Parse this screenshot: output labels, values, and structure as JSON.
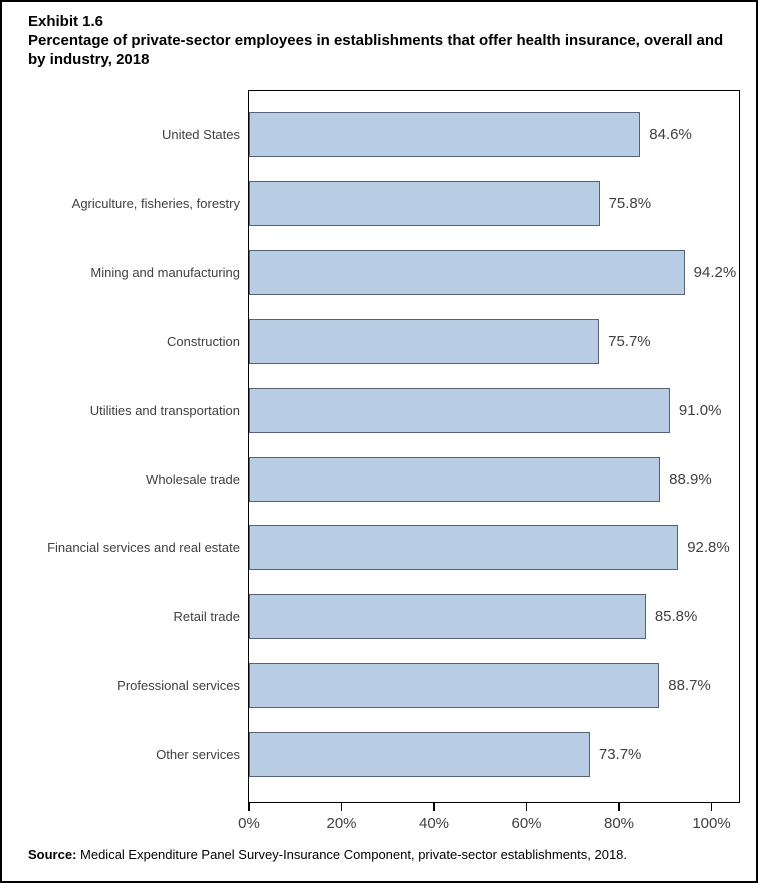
{
  "title": {
    "exhibit": "Exhibit 1.6",
    "text": "Percentage of private-sector employees in establishments that offer health insurance, overall and by industry, 2018"
  },
  "source": {
    "label": "Source:",
    "text": " Medical Expenditure Panel Survey-Insurance Component, private-sector establishments, 2018."
  },
  "chart_data": {
    "type": "bar",
    "orientation": "horizontal",
    "title": "Percentage of private-sector employees in establishments that offer health insurance, overall and by industry, 2018",
    "categories": [
      "United States",
      "Agriculture, fisheries, forestry",
      "Mining and manufacturing",
      "Construction",
      "Utilities and transportation",
      "Wholesale trade",
      "Financial services and real estate",
      "Retail trade",
      "Professional services",
      "Other services"
    ],
    "values": [
      84.6,
      75.8,
      94.2,
      75.7,
      91.0,
      88.9,
      92.8,
      85.8,
      88.7,
      73.7
    ],
    "value_labels": [
      "84.6%",
      "75.8%",
      "94.2%",
      "75.7%",
      "91.0%",
      "88.9%",
      "92.8%",
      "85.8%",
      "88.7%",
      "73.7%"
    ],
    "xlabel": "",
    "ylabel": "",
    "x_ticks": [
      "0%",
      "20%",
      "40%",
      "60%",
      "80%",
      "100%"
    ],
    "x_tick_values": [
      0,
      20,
      40,
      60,
      80,
      100
    ],
    "xlim": [
      0,
      106.4
    ],
    "grid": false,
    "legend": null,
    "data_labels_shown": true,
    "colors": {
      "bar_fill": "#b8cce4",
      "bar_border": "#566177",
      "plot_border": "#000000",
      "label_text": "#404040",
      "title_text": "#000000"
    }
  }
}
